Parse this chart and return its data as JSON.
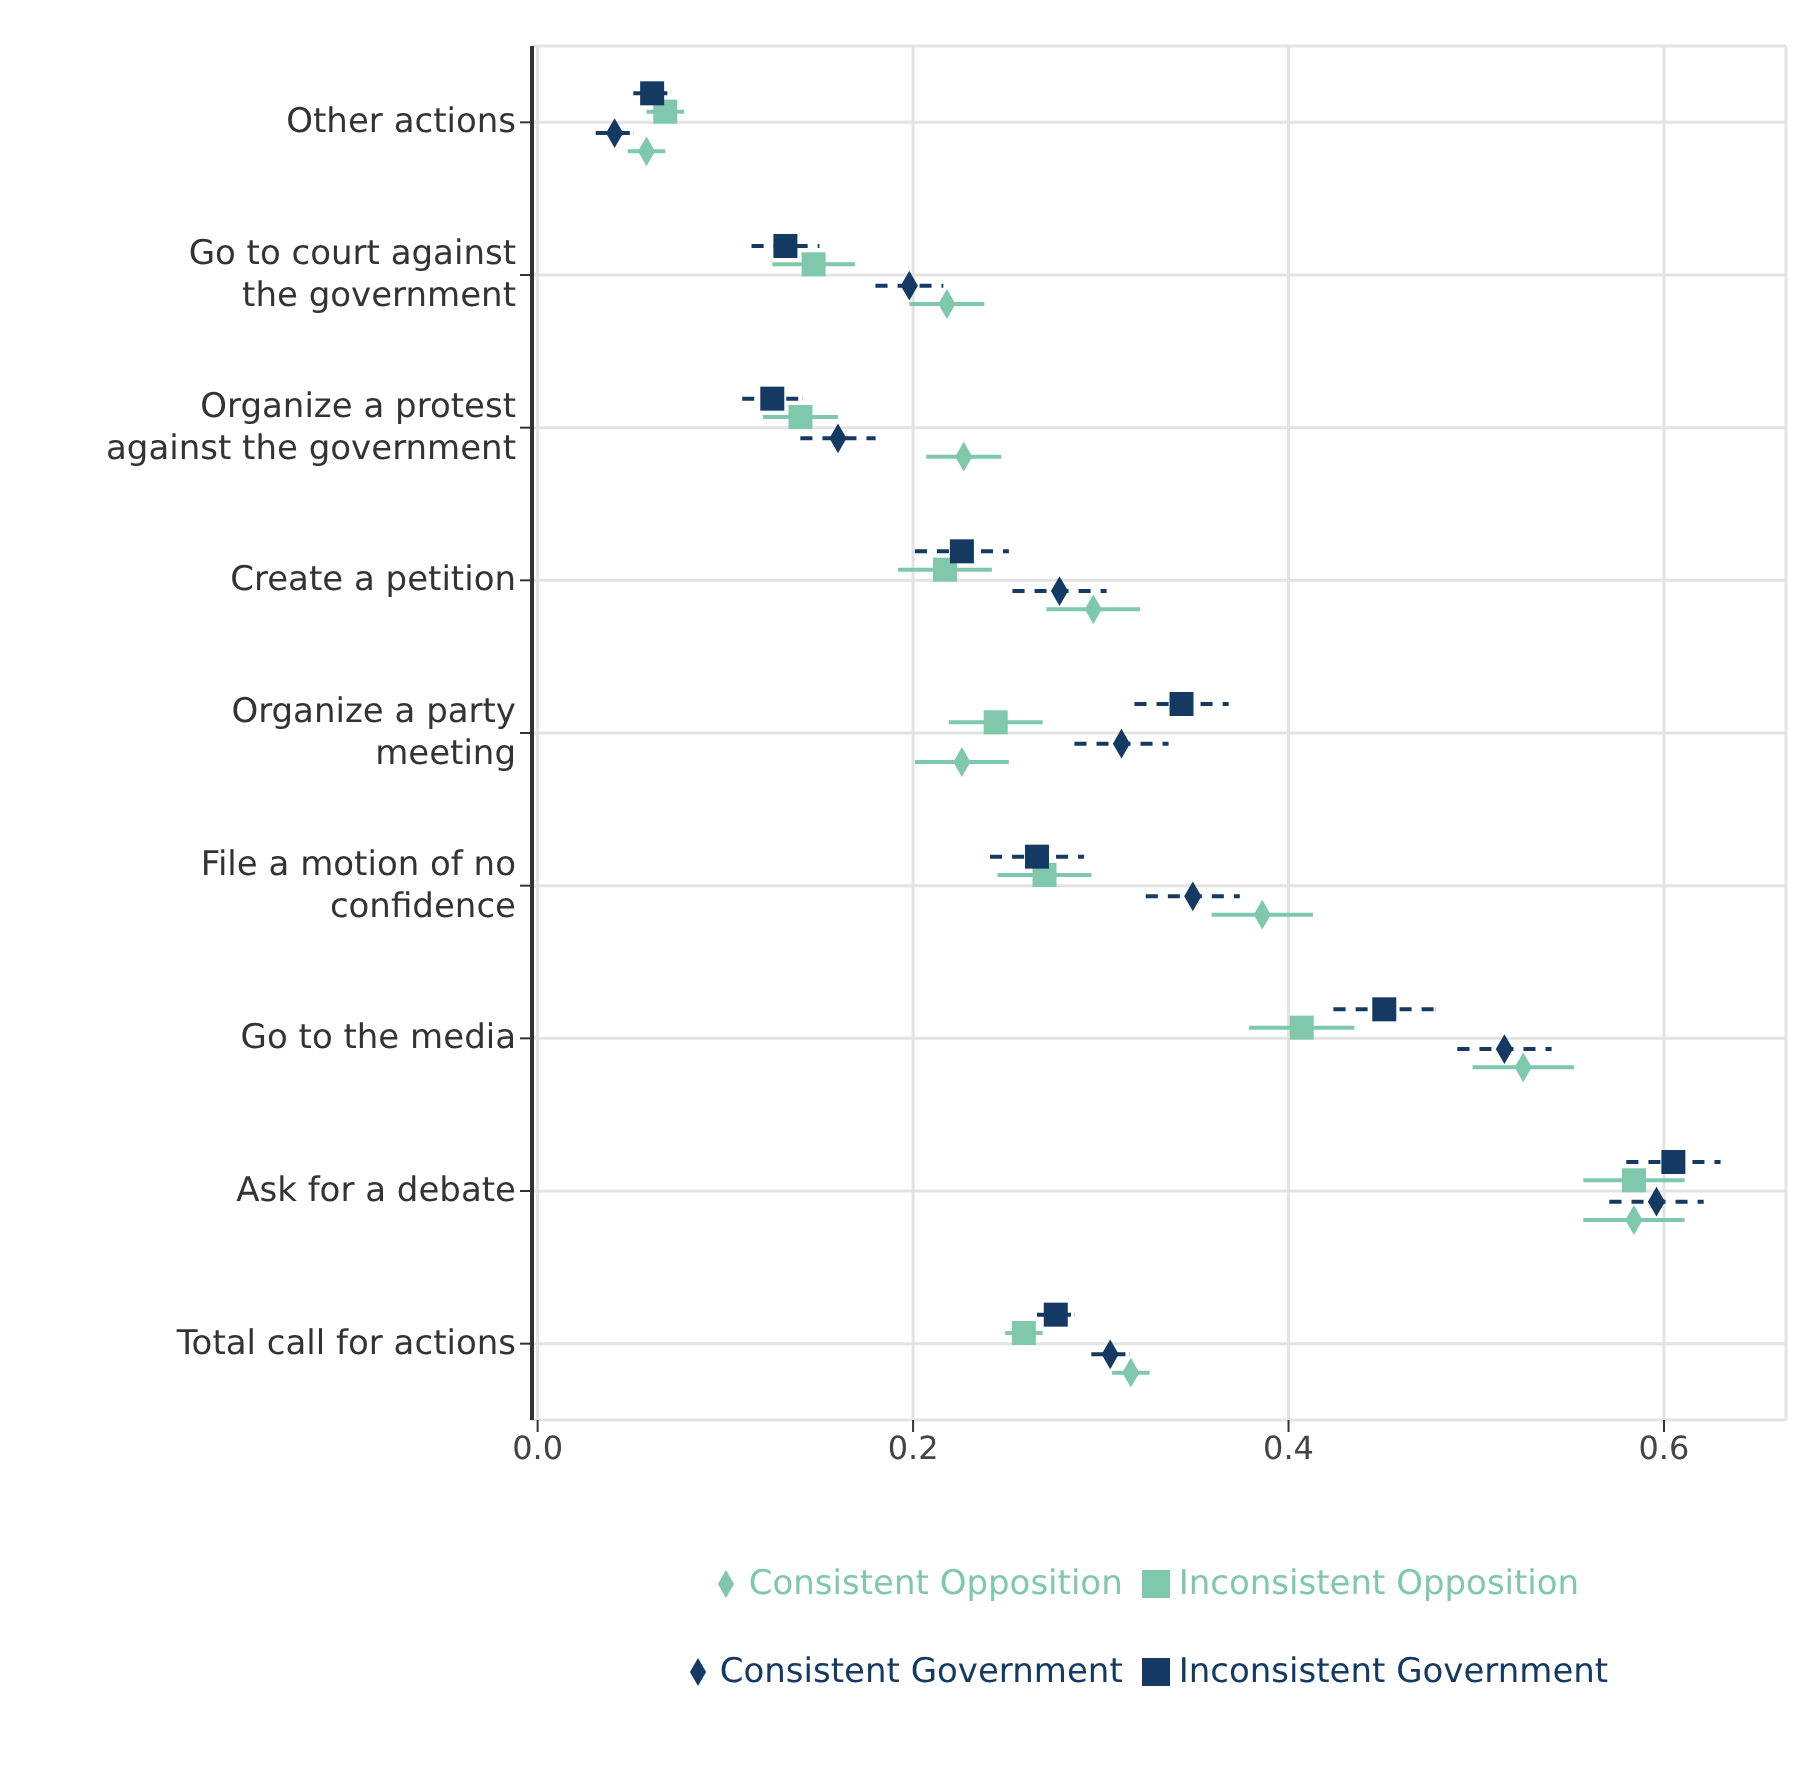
{
  "chart_data": {
    "type": "scatter",
    "orientation": "horizontal",
    "categories": [
      "Other actions",
      "Go to court against the government",
      "Organize a protest against the government",
      "Create a petition",
      "Organize a party meeting",
      "File a motion of no confidence",
      "Go to the media",
      "Ask for a debate",
      "Total call for actions"
    ],
    "series": [
      {
        "name": "Consistent Opposition",
        "color": "#7fc8ab",
        "marker": "diamond",
        "line_style": "solid",
        "values": [
          0.058,
          0.218,
          0.227,
          0.296,
          0.226,
          0.386,
          0.525,
          0.584,
          0.316
        ],
        "errors": [
          0.01,
          0.02,
          0.02,
          0.025,
          0.025,
          0.027,
          0.027,
          0.027,
          0.01
        ]
      },
      {
        "name": "Inconsistent Opposition",
        "color": "#7fc8ab",
        "marker": "square",
        "line_style": "solid",
        "values": [
          0.068,
          0.147,
          0.14,
          0.217,
          0.244,
          0.27,
          0.407,
          0.584,
          0.259
        ],
        "errors": [
          0.01,
          0.022,
          0.02,
          0.025,
          0.025,
          0.025,
          0.028,
          0.027,
          0.01
        ]
      },
      {
        "name": "Consistent Government",
        "color": "#143a63",
        "marker": "diamond",
        "line_style": "dashed",
        "values": [
          0.041,
          0.198,
          0.16,
          0.278,
          0.311,
          0.349,
          0.515,
          0.596,
          0.305
        ],
        "errors": [
          0.01,
          0.018,
          0.02,
          0.025,
          0.025,
          0.025,
          0.025,
          0.025,
          0.01
        ]
      },
      {
        "name": "Inconsistent Government",
        "color": "#143a63",
        "marker": "square",
        "line_style": "dashed",
        "values": [
          0.061,
          0.132,
          0.125,
          0.226,
          0.343,
          0.266,
          0.451,
          0.605,
          0.276
        ],
        "errors": [
          0.01,
          0.018,
          0.016,
          0.025,
          0.025,
          0.025,
          0.027,
          0.025,
          0.01
        ]
      }
    ],
    "xlim": [
      -0.003,
      0.665
    ],
    "xticks": [
      {
        "value": 0,
        "label": "0.0"
      },
      0.2,
      0.4,
      0.6
    ],
    "grid": true,
    "legend": "bottom"
  }
}
